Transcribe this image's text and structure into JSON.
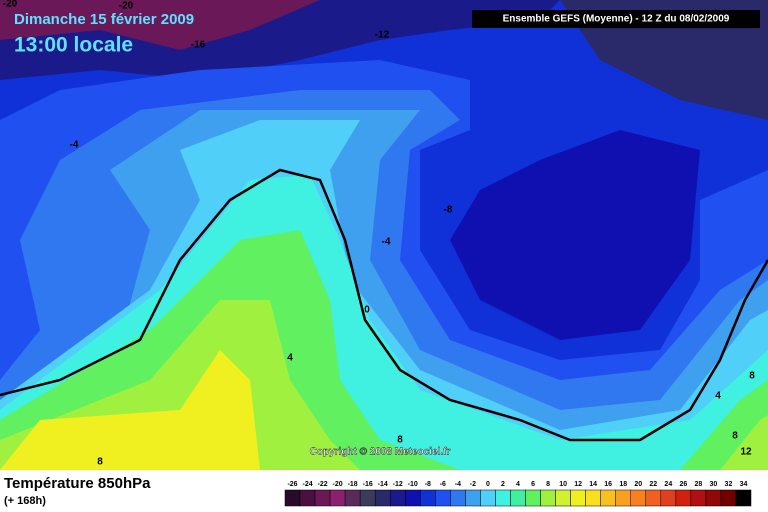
{
  "header": {
    "date": "Dimanche 15 février 2009",
    "time": "13:00 locale",
    "model": "Ensemble GEFS (Moyenne)  - 12 Z du 08/02/2009",
    "copyright": "Copyright © 2008 Meteociel.fr"
  },
  "map": {
    "contour_labels": [
      "-20",
      "-20",
      "-16",
      "-12",
      "-4",
      "-8",
      "-4",
      "0",
      "4",
      "8",
      "8",
      "8",
      "4",
      "8",
      "12"
    ]
  },
  "footer": {
    "title": "Température 850hPa",
    "lead": "(+ 168h)"
  },
  "legend": {
    "ticks": [
      -26,
      -24,
      -22,
      -20,
      -18,
      -16,
      -14,
      -12,
      -10,
      -8,
      -6,
      -4,
      -2,
      0,
      2,
      4,
      6,
      8,
      10,
      12,
      14,
      16,
      18,
      20,
      22,
      24,
      26,
      28,
      30,
      32,
      34
    ],
    "colors": [
      "#2a0a2a",
      "#4a1040",
      "#6a1858",
      "#8a2070",
      "#5a2a5a",
      "#3c3c5a",
      "#2a2a6a",
      "#1a1a8a",
      "#1010b0",
      "#1030d8",
      "#2050f0",
      "#3078f0",
      "#40a0f0",
      "#50d0f8",
      "#40f0e0",
      "#40f0a0",
      "#60f060",
      "#a0f040",
      "#d0f030",
      "#f0f020",
      "#f8e020",
      "#f8c020",
      "#f8a020",
      "#f88020",
      "#f06020",
      "#e04020",
      "#d02010",
      "#b01010",
      "#900808",
      "#700000",
      "#000000"
    ]
  }
}
